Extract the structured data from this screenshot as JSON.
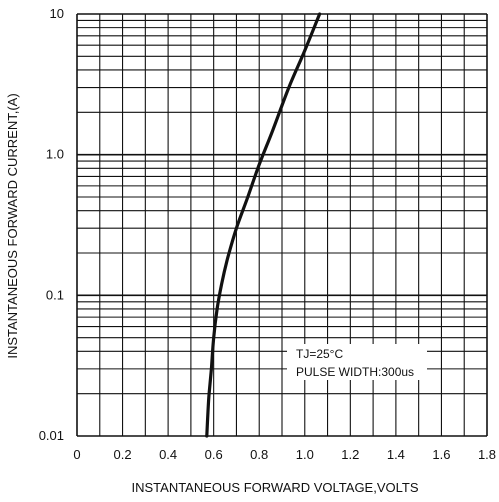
{
  "chart_data": {
    "type": "line",
    "title": "",
    "xlabel": "INSTANTANEOUS FORWARD VOLTAGE,VOLTS",
    "ylabel": "INSTANTANEOUS FORWARD CURRENT,(A)",
    "xlim": [
      0,
      1.8
    ],
    "ylim": [
      0.01,
      10
    ],
    "yscale": "log",
    "grid": true,
    "x_ticks": [
      {
        "value": 0,
        "label": "0"
      },
      {
        "value": 0.2,
        "label": "0.2"
      },
      {
        "value": 0.4,
        "label": "0.4"
      },
      {
        "value": 0.6,
        "label": "0.6"
      },
      {
        "value": 0.8,
        "label": "0.8"
      },
      {
        "value": 1.0,
        "label": "1.0"
      },
      {
        "value": 1.2,
        "label": "1.2"
      },
      {
        "value": 1.4,
        "label": "1.4"
      },
      {
        "value": 1.6,
        "label": "1.6"
      },
      {
        "value": 1.8,
        "label": "1.8"
      }
    ],
    "y_ticks": [
      {
        "value": 0.01,
        "label": "0.01"
      },
      {
        "value": 0.1,
        "label": "0.1"
      },
      {
        "value": 1,
        "label": "1.0"
      },
      {
        "value": 10,
        "label": "10"
      }
    ],
    "annotations": [
      "TJ=25°C",
      "PULSE WIDTH:300us"
    ],
    "series": [
      {
        "color": "#111111",
        "x": [
          0.57,
          0.575,
          0.58,
          0.59,
          0.6,
          0.615,
          0.635,
          0.66,
          0.7,
          0.75,
          0.8,
          0.86,
          0.93,
          1.0,
          1.065
        ],
        "y": [
          0.01,
          0.015,
          0.02,
          0.03,
          0.05,
          0.08,
          0.12,
          0.18,
          0.3,
          0.5,
          0.85,
          1.5,
          3.0,
          5.5,
          10
        ]
      }
    ]
  }
}
